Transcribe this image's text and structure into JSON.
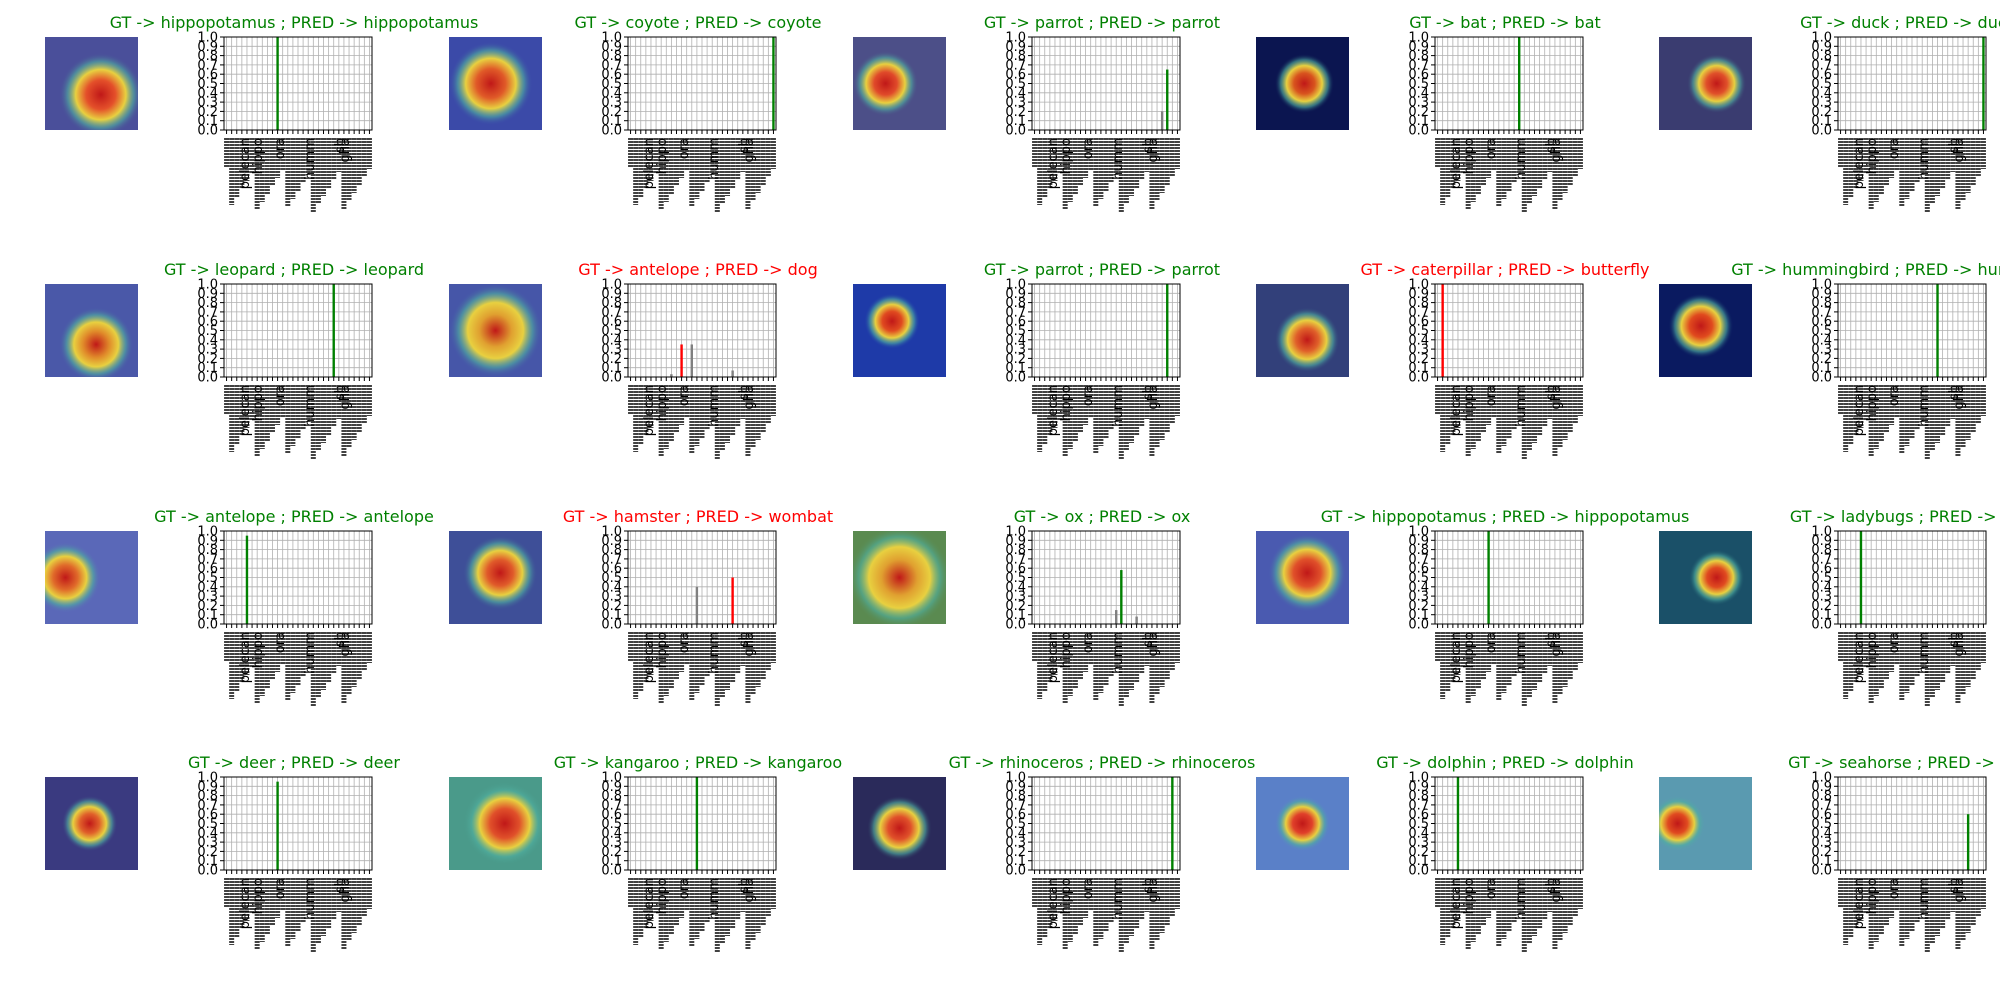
{
  "figure": {
    "colors": {
      "correct": "#008000",
      "wrong": "#ff0000",
      "bar_default": "#808080",
      "grid": "#b0b0b0",
      "axis": "#000000"
    },
    "y_ticks": [
      "0.0",
      "0.1",
      "0.2",
      "0.3",
      "0.4",
      "0.5",
      "0.6",
      "0.7",
      "0.8",
      "0.9",
      "1.0"
    ],
    "visible_tick_labels": [
      "pelecan",
      "hippo",
      "ora",
      "humm",
      "sh",
      "gha"
    ]
  },
  "chart_data": [
    {
      "type": "bar",
      "title": "GT -> hippopotamus ; PRED -> hippopotamus",
      "correct": true,
      "ylim": [
        0,
        1
      ],
      "bars": [
        {
          "index": 10,
          "value": 1.0,
          "highlight": true
        }
      ],
      "heatmap": {
        "bg": "#4a4f9a",
        "blob": "#e4502a",
        "cx": 0.6,
        "cy": 0.62,
        "r": 0.45
      }
    },
    {
      "type": "bar",
      "title": "GT -> coyote ; PRED -> coyote",
      "correct": true,
      "ylim": [
        0,
        1
      ],
      "bars": [
        {
          "index": 28,
          "value": 1.0,
          "highlight": true
        }
      ],
      "heatmap": {
        "bg": "#3b4aa8",
        "blob": "#e05a28",
        "cx": 0.45,
        "cy": 0.5,
        "r": 0.45
      }
    },
    {
      "type": "bar",
      "title": "GT -> parrot ; PRED -> parrot",
      "correct": true,
      "ylim": [
        0,
        1
      ],
      "bars": [
        {
          "index": 25,
          "value": 0.2,
          "highlight": false
        },
        {
          "index": 26,
          "value": 0.65,
          "highlight": true
        }
      ],
      "heatmap": {
        "bg": "#4c4f88",
        "blob": "#e04a2a",
        "cx": 0.35,
        "cy": 0.5,
        "r": 0.35
      }
    },
    {
      "type": "bar",
      "title": "GT -> bat ; PRED -> bat",
      "correct": true,
      "ylim": [
        0,
        1
      ],
      "bars": [
        {
          "index": 16,
          "value": 1.0,
          "highlight": true
        }
      ],
      "heatmap": {
        "bg": "#0b1550",
        "blob": "#d8541e",
        "cx": 0.52,
        "cy": 0.5,
        "r": 0.32
      }
    },
    {
      "type": "bar",
      "title": "GT -> duck ; PRED -> duck",
      "correct": true,
      "ylim": [
        0,
        1
      ],
      "bars": [
        {
          "index": 28,
          "value": 1.0,
          "highlight": true
        }
      ],
      "heatmap": {
        "bg": "#3a3c70",
        "blob": "#e0502a",
        "cx": 0.62,
        "cy": 0.5,
        "r": 0.32
      }
    },
    {
      "type": "bar",
      "title": "GT -> leopard ; PRED -> leopard",
      "correct": true,
      "ylim": [
        0,
        1
      ],
      "bars": [
        {
          "index": 21,
          "value": 1.0,
          "highlight": true
        }
      ],
      "heatmap": {
        "bg": "#4a58a8",
        "blob": "#e08a2a",
        "cx": 0.55,
        "cy": 0.65,
        "r": 0.4
      }
    },
    {
      "type": "bar",
      "title": "GT -> antelope ; PRED -> dog",
      "correct": false,
      "ylim": [
        0,
        1
      ],
      "bars": [
        {
          "index": 8,
          "value": 0.03,
          "highlight": false
        },
        {
          "index": 10,
          "value": 0.35,
          "highlight": true
        },
        {
          "index": 12,
          "value": 0.35,
          "highlight": false
        },
        {
          "index": 20,
          "value": 0.07,
          "highlight": false
        }
      ],
      "heatmap": {
        "bg": "#4656a8",
        "blob": "#e0a030",
        "cx": 0.5,
        "cy": 0.5,
        "r": 0.5
      }
    },
    {
      "type": "bar",
      "title": "GT -> parrot ; PRED -> parrot",
      "correct": true,
      "ylim": [
        0,
        1
      ],
      "bars": [
        {
          "index": 26,
          "value": 1.0,
          "highlight": true
        }
      ],
      "heatmap": {
        "bg": "#1e3aa8",
        "blob": "#e04a20",
        "cx": 0.42,
        "cy": 0.4,
        "r": 0.3
      }
    },
    {
      "type": "bar",
      "title": "GT -> caterpillar ; PRED -> butterfly",
      "correct": false,
      "ylim": [
        0,
        1
      ],
      "bars": [
        {
          "index": 1,
          "value": 1.0,
          "highlight": true
        }
      ],
      "heatmap": {
        "bg": "#32407a",
        "blob": "#e0602a",
        "cx": 0.55,
        "cy": 0.6,
        "r": 0.35
      }
    },
    {
      "type": "bar",
      "title": "GT -> hummingbird ; PRED -> hummingbird",
      "correct": true,
      "ylim": [
        0,
        1
      ],
      "bars": [
        {
          "index": 19,
          "value": 1.0,
          "highlight": true
        }
      ],
      "heatmap": {
        "bg": "#0a1a60",
        "blob": "#e04a1e",
        "cx": 0.45,
        "cy": 0.45,
        "r": 0.35
      }
    },
    {
      "type": "bar",
      "title": "GT -> antelope ; PRED -> antelope",
      "correct": true,
      "ylim": [
        0,
        1
      ],
      "bars": [
        {
          "index": 4,
          "value": 0.95,
          "highlight": true
        }
      ],
      "heatmap": {
        "bg": "#5a68b8",
        "blob": "#e06a2a",
        "cx": 0.22,
        "cy": 0.5,
        "r": 0.38
      }
    },
    {
      "type": "bar",
      "title": "GT -> hamster ; PRED -> wombat",
      "correct": false,
      "ylim": [
        0,
        1
      ],
      "bars": [
        {
          "index": 13,
          "value": 0.4,
          "highlight": false
        },
        {
          "index": 20,
          "value": 0.5,
          "highlight": true
        }
      ],
      "heatmap": {
        "bg": "#3e4f98",
        "blob": "#e05a2a",
        "cx": 0.55,
        "cy": 0.45,
        "r": 0.4
      }
    },
    {
      "type": "bar",
      "title": "GT -> ox ; PRED -> ox",
      "correct": true,
      "ylim": [
        0,
        1
      ],
      "bars": [
        {
          "index": 16,
          "value": 0.15,
          "highlight": false
        },
        {
          "index": 17,
          "value": 0.58,
          "highlight": true
        },
        {
          "index": 20,
          "value": 0.08,
          "highlight": false
        }
      ],
      "heatmap": {
        "bg": "#5a8a50",
        "blob": "#e0a030",
        "cx": 0.5,
        "cy": 0.5,
        "r": 0.55
      }
    },
    {
      "type": "bar",
      "title": "GT -> hippopotamus ; PRED -> hippopotamus",
      "correct": true,
      "ylim": [
        0,
        1
      ],
      "bars": [
        {
          "index": 10,
          "value": 1.0,
          "highlight": true
        }
      ],
      "heatmap": {
        "bg": "#4a5ab0",
        "blob": "#e0502a",
        "cx": 0.55,
        "cy": 0.45,
        "r": 0.42
      }
    },
    {
      "type": "bar",
      "title": "GT -> ladybugs ; PRED -> lad",
      "correct": true,
      "ylim": [
        0,
        1
      ],
      "bars": [
        {
          "index": 4,
          "value": 1.0,
          "highlight": true
        }
      ],
      "heatmap": {
        "bg": "#1a5068",
        "blob": "#e04a20",
        "cx": 0.62,
        "cy": 0.5,
        "r": 0.3
      }
    },
    {
      "type": "bar",
      "title": "GT -> deer ; PRED -> deer",
      "correct": true,
      "ylim": [
        0,
        1
      ],
      "bars": [
        {
          "index": 10,
          "value": 0.95,
          "highlight": true
        }
      ],
      "heatmap": {
        "bg": "#3a3a80",
        "blob": "#e0602a",
        "cx": 0.48,
        "cy": 0.5,
        "r": 0.3
      }
    },
    {
      "type": "bar",
      "title": "GT -> kangaroo ; PRED -> kangaroo",
      "correct": true,
      "ylim": [
        0,
        1
      ],
      "bars": [
        {
          "index": 13,
          "value": 1.0,
          "highlight": true
        }
      ],
      "heatmap": {
        "bg": "#4a9a8a",
        "blob": "#e0502a",
        "cx": 0.6,
        "cy": 0.5,
        "r": 0.45
      }
    },
    {
      "type": "bar",
      "title": "GT -> rhinoceros ; PRED -> rhinoceros",
      "correct": true,
      "ylim": [
        0,
        1
      ],
      "bars": [
        {
          "index": 27,
          "value": 1.0,
          "highlight": true
        }
      ],
      "heatmap": {
        "bg": "#2a2a5a",
        "blob": "#e0502a",
        "cx": 0.5,
        "cy": 0.55,
        "r": 0.35
      }
    },
    {
      "type": "bar",
      "title": "GT -> dolphin ; PRED -> dolphin",
      "correct": true,
      "ylim": [
        0,
        1
      ],
      "bars": [
        {
          "index": 4,
          "value": 1.0,
          "highlight": true
        }
      ],
      "heatmap": {
        "bg": "#5a80c8",
        "blob": "#e0402a",
        "cx": 0.5,
        "cy": 0.5,
        "r": 0.3
      }
    },
    {
      "type": "bar",
      "title": "GT -> seahorse ; PRED -> sea",
      "correct": true,
      "ylim": [
        0,
        1
      ],
      "bars": [
        {
          "index": 25,
          "value": 0.6,
          "highlight": true
        }
      ],
      "heatmap": {
        "bg": "#5a9ab0",
        "blob": "#e04a20",
        "cx": 0.2,
        "cy": 0.5,
        "r": 0.3
      }
    }
  ]
}
